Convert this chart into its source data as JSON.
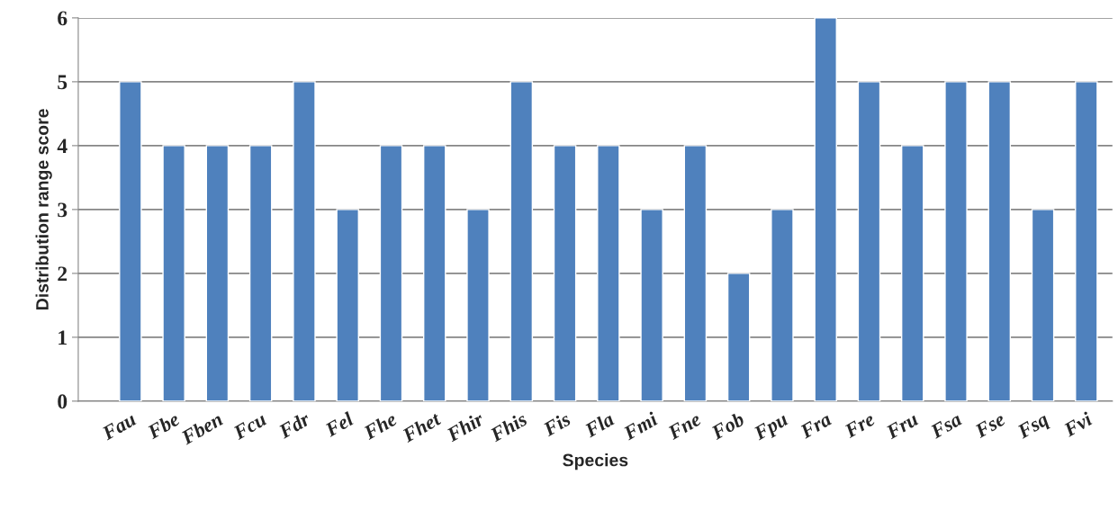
{
  "chart_data": {
    "type": "bar",
    "xlabel": "Species",
    "ylabel": "Distribution range score",
    "categories": [
      "Fau",
      "Fbe",
      "Fben",
      "Fcu",
      "Fdr",
      "Fel",
      "Fhe",
      "Fhet",
      "Fhir",
      "Fhis",
      "Fis",
      "Fla",
      "Fmi",
      "Fne",
      "Fob",
      "Fpu",
      "Fra",
      "Fre",
      "Fru",
      "Fsa",
      "Fse",
      "Fsq",
      "Fvi"
    ],
    "values": [
      5,
      4,
      4,
      4,
      5,
      3,
      4,
      4,
      3,
      5,
      4,
      4,
      3,
      4,
      2,
      3,
      6,
      5,
      4,
      5,
      5,
      3,
      5
    ],
    "color": "#4f81bd",
    "ylim": [
      0,
      6
    ],
    "yticks": [
      0,
      1,
      2,
      3,
      4,
      5,
      6
    ],
    "grid": "y",
    "legend": false
  }
}
